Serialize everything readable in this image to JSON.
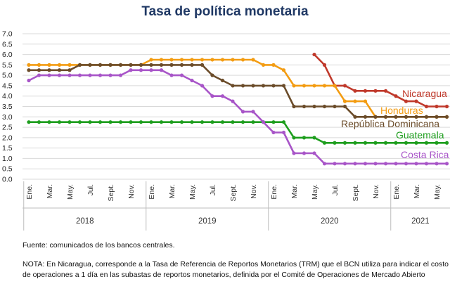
{
  "chart_data": {
    "type": "line",
    "title": "Tasa de política monetaria",
    "ylim": [
      0,
      7
    ],
    "yticks": [
      "0.0",
      "0.5",
      "1.0",
      "1.5",
      "2.0",
      "2.5",
      "3.0",
      "3.5",
      "4.0",
      "4.5",
      "5.0",
      "5.5",
      "6.0",
      "6.5",
      "7.0"
    ],
    "x_month_labels": [
      "Ene.",
      "Mar.",
      "May.",
      "Jul.",
      "Sept.",
      "Nov.",
      "Ene.",
      "Mar.",
      "May.",
      "Jul.",
      "Sept.",
      "Nov.",
      "Ene.",
      "Mar.",
      "May.",
      "Jul.",
      "Sept.",
      "Nov.",
      "Ene.",
      "Mar.",
      "May."
    ],
    "x_year_labels": [
      "2018",
      "2019",
      "2020",
      "2021"
    ],
    "grid": true,
    "legend": "labels at line ends",
    "series": [
      {
        "name": "Nicaragua",
        "color": "#c0392b",
        "values": [
          null,
          null,
          null,
          null,
          null,
          null,
          null,
          null,
          null,
          null,
          null,
          null,
          null,
          null,
          null,
          null,
          null,
          null,
          null,
          null,
          null,
          null,
          null,
          null,
          null,
          null,
          null,
          null,
          6.0,
          5.5,
          4.5,
          4.5,
          4.25,
          4.25,
          4.25,
          4.25,
          4.0,
          3.75,
          3.75,
          3.5,
          3.5,
          3.5
        ]
      },
      {
        "name": "Honduras",
        "color": "#f39c12",
        "values": [
          5.5,
          5.5,
          5.5,
          5.5,
          5.5,
          5.5,
          5.5,
          5.5,
          5.5,
          5.5,
          5.5,
          5.5,
          5.75,
          5.75,
          5.75,
          5.75,
          5.75,
          5.75,
          5.75,
          5.75,
          5.75,
          5.75,
          5.75,
          5.5,
          5.5,
          5.25,
          4.5,
          4.5,
          4.5,
          4.5,
          4.5,
          3.75,
          3.75,
          3.75,
          3.0,
          3.0,
          3.0,
          3.0,
          3.0,
          3.0,
          3.0,
          3.0
        ]
      },
      {
        "name": "República Dominicana",
        "color": "#6b4c2a",
        "values": [
          5.25,
          5.25,
          5.25,
          5.25,
          5.25,
          5.5,
          5.5,
          5.5,
          5.5,
          5.5,
          5.5,
          5.5,
          5.5,
          5.5,
          5.5,
          5.5,
          5.5,
          5.5,
          5.0,
          4.75,
          4.5,
          4.5,
          4.5,
          4.5,
          4.5,
          4.5,
          3.5,
          3.5,
          3.5,
          3.5,
          3.5,
          3.5,
          3.0,
          3.0,
          3.0,
          3.0,
          3.0,
          3.0,
          3.0,
          3.0,
          3.0,
          3.0
        ]
      },
      {
        "name": "Guatemala",
        "color": "#1e9e1e",
        "values": [
          2.75,
          2.75,
          2.75,
          2.75,
          2.75,
          2.75,
          2.75,
          2.75,
          2.75,
          2.75,
          2.75,
          2.75,
          2.75,
          2.75,
          2.75,
          2.75,
          2.75,
          2.75,
          2.75,
          2.75,
          2.75,
          2.75,
          2.75,
          2.75,
          2.75,
          2.75,
          2.0,
          2.0,
          2.0,
          1.75,
          1.75,
          1.75,
          1.75,
          1.75,
          1.75,
          1.75,
          1.75,
          1.75,
          1.75,
          1.75,
          1.75,
          1.75
        ]
      },
      {
        "name": "Costa Rica",
        "color": "#a855c8",
        "values": [
          4.75,
          5.0,
          5.0,
          5.0,
          5.0,
          5.0,
          5.0,
          5.0,
          5.0,
          5.0,
          5.25,
          5.25,
          5.25,
          5.25,
          5.0,
          5.0,
          4.75,
          4.5,
          4.0,
          4.0,
          3.75,
          3.25,
          3.25,
          2.75,
          2.25,
          2.25,
          1.25,
          1.25,
          1.25,
          0.75,
          0.75,
          0.75,
          0.75,
          0.75,
          0.75,
          0.75,
          0.75,
          0.75,
          0.75,
          0.75,
          0.75,
          0.75
        ]
      }
    ]
  },
  "source_note": "Fuente: comunicados de los bancos centrales.",
  "footnote": "NOTA: En Nicaragua, corresponde a la Tasa de Referencia de Reportos Monetarios (TRM) que el BCN utiliza para indicar el costo de operaciones a 1 día en las subastas de reportos monetarios, definida por el Comité de Operaciones de Mercado Abierto"
}
